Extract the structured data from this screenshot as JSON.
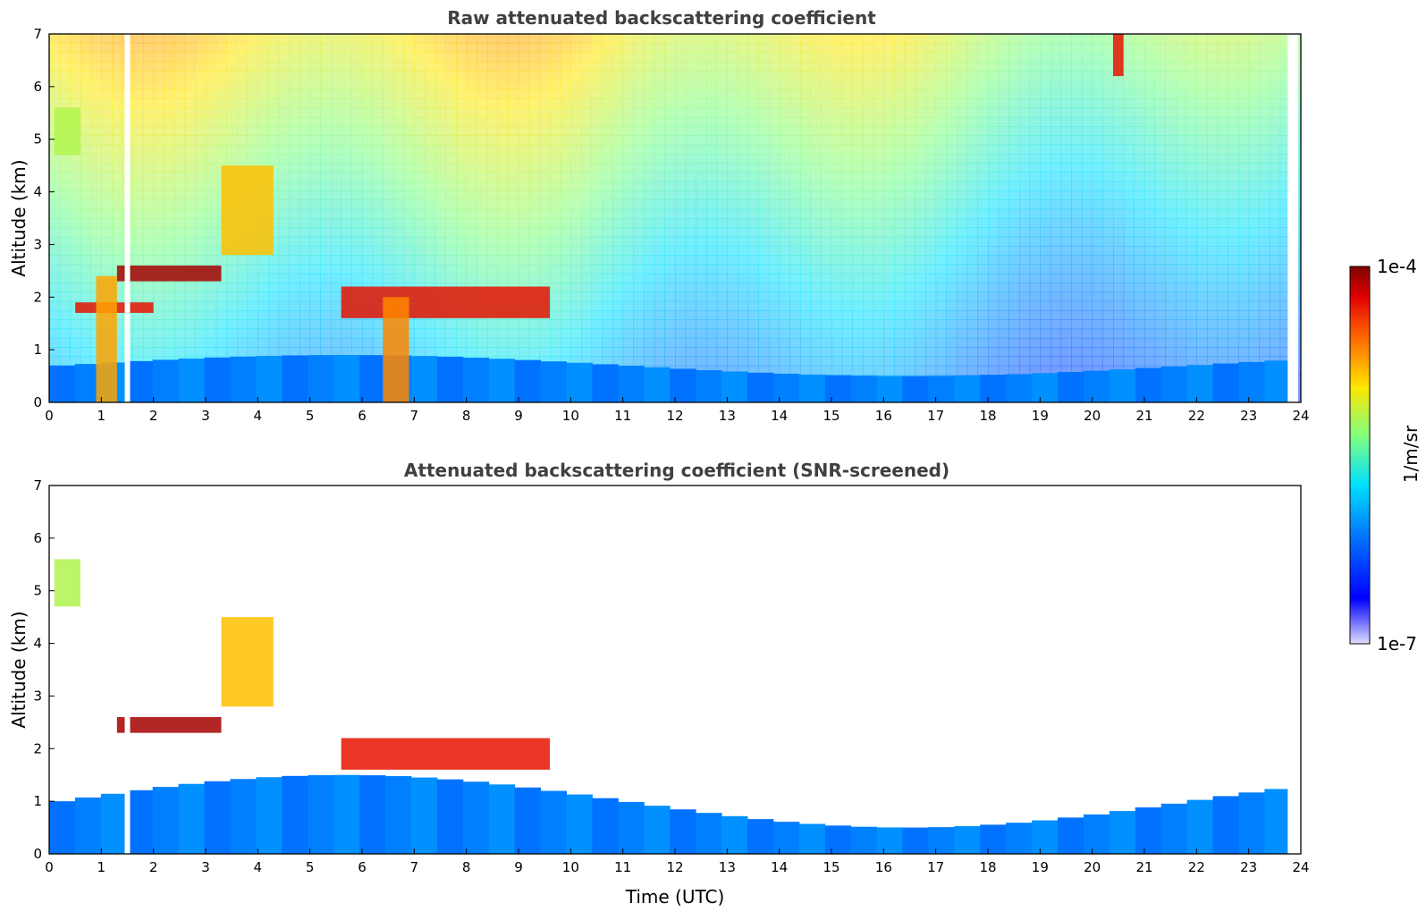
{
  "chart_data": [
    {
      "type": "heatmap",
      "title": "Raw attenuated backscattering coefficient",
      "xlabel": "",
      "ylabel": "Altitude (km)",
      "xlim": [
        0,
        24
      ],
      "ylim": [
        0,
        7
      ],
      "x_ticks": [
        "0",
        "1",
        "2",
        "3",
        "4",
        "5",
        "6",
        "7",
        "8",
        "9",
        "10",
        "11",
        "12",
        "13",
        "14",
        "15",
        "16",
        "17",
        "18",
        "19",
        "20",
        "21",
        "22",
        "23",
        "24"
      ],
      "y_ticks": [
        "0",
        "1",
        "2",
        "3",
        "4",
        "5",
        "6",
        "7"
      ],
      "data_gaps_utc": [
        1.5,
        23.8
      ],
      "features": [
        {
          "kind": "boundary_layer",
          "x": [
            0,
            23.8
          ],
          "top_km": [
            0.5,
            0.9
          ],
          "level": 0.28
        },
        {
          "kind": "cloud_layer",
          "x": [
            1.3,
            3.3
          ],
          "y_km": [
            2.3,
            2.6
          ],
          "level": 0.97
        },
        {
          "kind": "cloud_layer",
          "x": [
            0.5,
            2.0
          ],
          "y_km": [
            1.7,
            1.9
          ],
          "level": 0.9
        },
        {
          "kind": "cloud_layer",
          "x": [
            5.6,
            9.6
          ],
          "y_km": [
            1.6,
            2.2
          ],
          "level": 0.9
        },
        {
          "kind": "cirrus",
          "x": [
            3.3,
            4.3
          ],
          "y_km": [
            2.8,
            4.5
          ],
          "level": 0.72
        },
        {
          "kind": "cirrus",
          "x": [
            0.1,
            0.6
          ],
          "y_km": [
            4.7,
            5.6
          ],
          "level": 0.6
        },
        {
          "kind": "precipitation",
          "x": [
            6.4,
            6.9
          ],
          "y_km": [
            0,
            2.0
          ],
          "level": 0.78
        },
        {
          "kind": "precipitation",
          "x": [
            0.9,
            1.3
          ],
          "y_km": [
            0,
            2.4
          ],
          "level": 0.75
        },
        {
          "kind": "cirrus",
          "x": [
            20.4,
            20.6
          ],
          "y_km": [
            6.2,
            7.0
          ],
          "level": 0.9
        }
      ]
    },
    {
      "type": "heatmap",
      "title": "Attenuated backscattering coefficient (SNR-screened)",
      "xlabel": "Time (UTC)",
      "ylabel": "Altitude (km)",
      "xlim": [
        0,
        24
      ],
      "ylim": [
        0,
        7
      ],
      "x_ticks": [
        "0",
        "1",
        "2",
        "3",
        "4",
        "5",
        "6",
        "7",
        "8",
        "9",
        "10",
        "11",
        "12",
        "13",
        "14",
        "15",
        "16",
        "17",
        "18",
        "19",
        "20",
        "21",
        "22",
        "23",
        "24"
      ],
      "y_ticks": [
        "0",
        "1",
        "2",
        "3",
        "4",
        "5",
        "6",
        "7"
      ],
      "data_gaps_utc": [
        1.5,
        23.8
      ],
      "features": [
        {
          "kind": "boundary_layer",
          "x": [
            0,
            23.8
          ],
          "top_km": [
            0.5,
            1.5
          ],
          "level": 0.28
        },
        {
          "kind": "cloud_layer",
          "x": [
            1.3,
            3.3
          ],
          "y_km": [
            2.3,
            2.6
          ],
          "level": 0.97
        },
        {
          "kind": "cloud_layer",
          "x": [
            5.6,
            9.6
          ],
          "y_km": [
            1.6,
            2.2
          ],
          "level": 0.9
        },
        {
          "kind": "cirrus",
          "x": [
            3.3,
            4.3
          ],
          "y_km": [
            2.8,
            4.5
          ],
          "level": 0.72
        },
        {
          "kind": "cirrus",
          "x": [
            0.1,
            0.6
          ],
          "y_km": [
            4.7,
            5.6
          ],
          "level": 0.6
        }
      ]
    }
  ],
  "colorbar": {
    "label": "1/m/sr",
    "max_label": "1e-4",
    "min_label": "1e-7",
    "colormap": "jet"
  },
  "colors": {
    "axis": "#000000",
    "title_text": "#404040",
    "background": "#ffffff"
  }
}
